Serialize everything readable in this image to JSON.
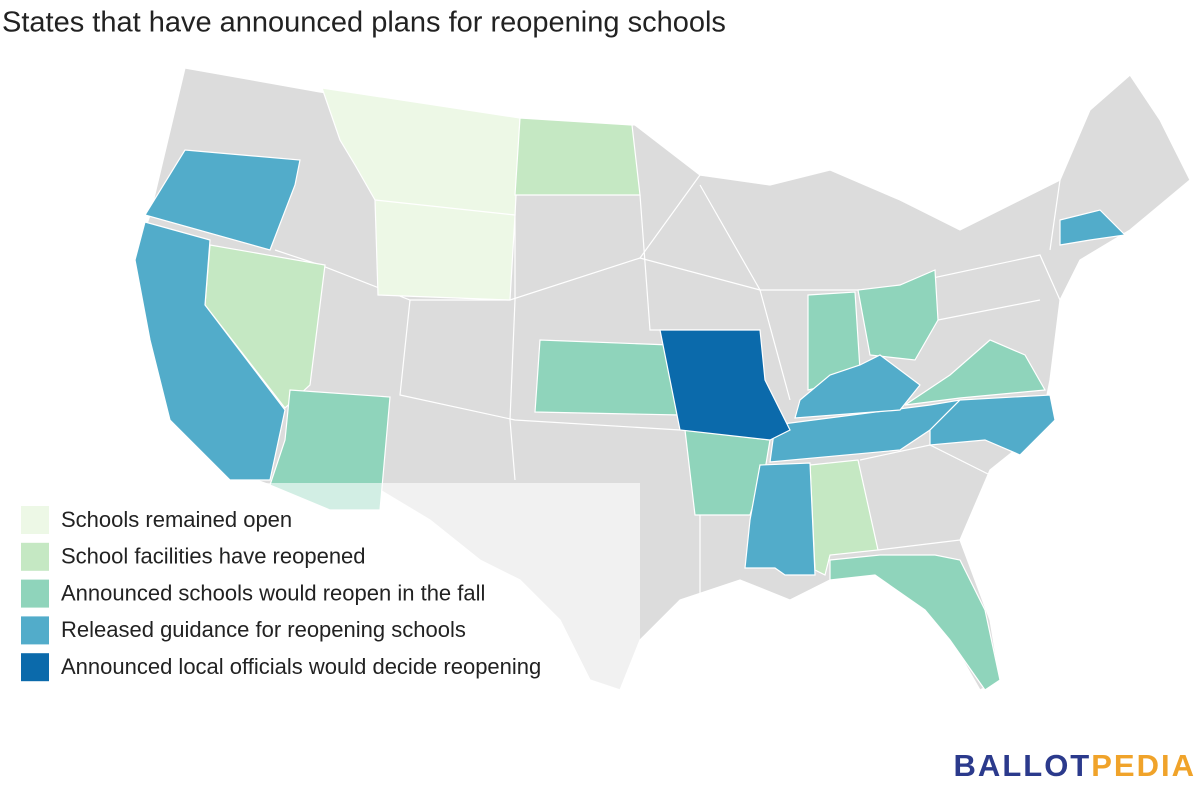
{
  "title": "States that have announced plans for reopening schools",
  "legend": [
    {
      "name": "Schools remained open",
      "color": "#edf8e6"
    },
    {
      "name": "School facilities have reopened",
      "color": "#c5e8c3"
    },
    {
      "name": "Announced schools would reopen in the fall",
      "color": "#8fd4bb"
    },
    {
      "name": "Released guidance for reopening schools",
      "color": "#52acca"
    },
    {
      "name": "Announced local officials would decide reopening",
      "color": "#0b6aab"
    }
  ],
  "logo": {
    "first": "BALLOT",
    "second": "PEDIA"
  }
}
